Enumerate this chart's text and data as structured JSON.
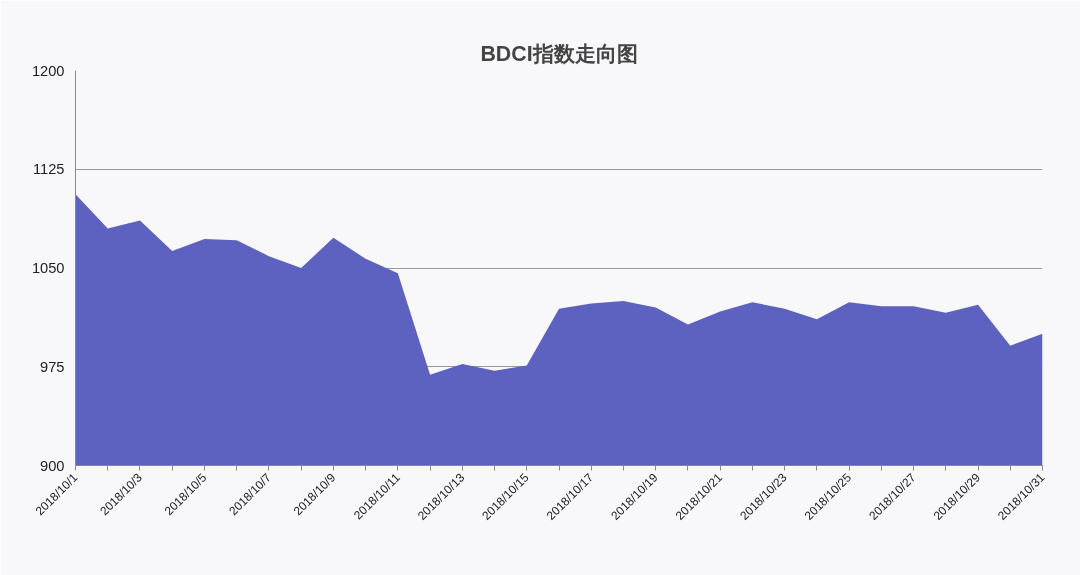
{
  "chart_data": {
    "type": "area",
    "title": "BDCI指数走向图",
    "categories": [
      "2018/10/1",
      null,
      "2018/10/3",
      null,
      "2018/10/5",
      null,
      "2018/10/7",
      null,
      "2018/10/9",
      null,
      "2018/10/11",
      null,
      "2018/10/13",
      null,
      "2018/10/15",
      null,
      "2018/10/17",
      null,
      "2018/10/19",
      null,
      "2018/10/21",
      null,
      "2018/10/23",
      null,
      "2018/10/25",
      null,
      "2018/10/27",
      null,
      "2018/10/29",
      null,
      "2018/10/31"
    ],
    "series": [
      {
        "color": "#5d62c0",
        "values": [
          1106,
          1080,
          1086,
          1063,
          1072,
          1071,
          1059,
          1050,
          1073,
          1057,
          1046,
          969,
          977,
          972,
          976,
          1019,
          1023,
          1025,
          1020,
          1007,
          1017,
          1024,
          1019,
          1011,
          1024,
          1021,
          1021,
          1016,
          1022,
          991,
          1000
        ]
      }
    ],
    "ylim": [
      900,
      1200
    ],
    "yticks": [
      900,
      975,
      1050,
      1125,
      1200
    ],
    "grid": "y"
  }
}
